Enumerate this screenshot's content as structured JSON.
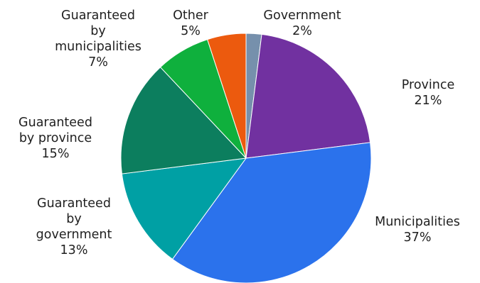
{
  "chart_data": {
    "type": "pie",
    "title": "",
    "start_angle_deg": 0,
    "direction": "clockwise",
    "slices": [
      {
        "key": "government",
        "label_lines": [
          "Government",
          "2%"
        ],
        "value": 2,
        "color": "#7690ac"
      },
      {
        "key": "province",
        "label_lines": [
          "Province",
          "21%"
        ],
        "value": 21,
        "color": "#7131a0"
      },
      {
        "key": "municipalities",
        "label_lines": [
          "Municipalities",
          "37%"
        ],
        "value": 37,
        "color": "#2b72ec"
      },
      {
        "key": "guaranteed-by-government",
        "label_lines": [
          "Guaranteed",
          "by",
          "government",
          "13%"
        ],
        "value": 13,
        "color": "#00a0a4"
      },
      {
        "key": "guaranteed-by-province",
        "label_lines": [
          "Guaranteed",
          "by province",
          "15%"
        ],
        "value": 15,
        "color": "#0c7e5e"
      },
      {
        "key": "guaranteed-by-municipalities",
        "label_lines": [
          "Guaranteed",
          "by",
          "municipalities",
          "7%"
        ],
        "value": 7,
        "color": "#0fb03d"
      },
      {
        "key": "other",
        "label_lines": [
          "Other",
          "5%"
        ],
        "value": 5,
        "color": "#ec5a0e"
      }
    ]
  }
}
